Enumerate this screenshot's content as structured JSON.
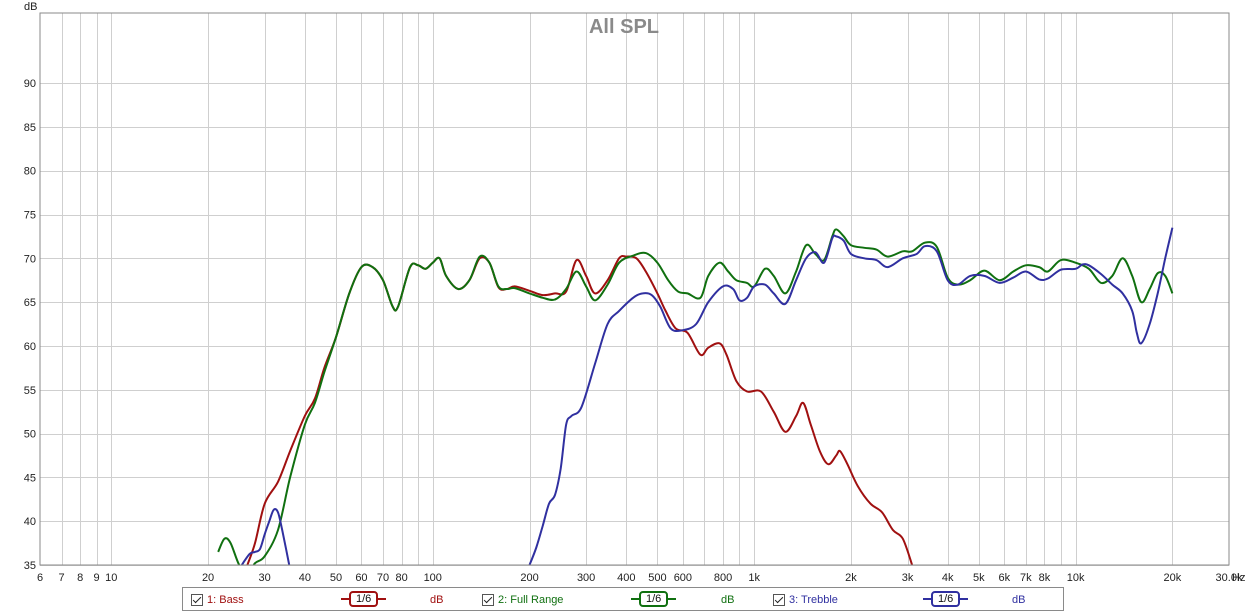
{
  "chart_data": {
    "type": "line",
    "title": "All SPL",
    "y_unit_label": "dB",
    "x_unit_label": "Hz",
    "x_scale": "log",
    "xlim": [
      6,
      30000
    ],
    "ylim": [
      35,
      98
    ],
    "grid": true,
    "legend_position": "bottom",
    "y_ticks": [
      {
        "v": 35,
        "label": "35"
      },
      {
        "v": 40,
        "label": "40"
      },
      {
        "v": 45,
        "label": "45"
      },
      {
        "v": 50,
        "label": "50"
      },
      {
        "v": 55,
        "label": "55"
      },
      {
        "v": 60,
        "label": "60"
      },
      {
        "v": 65,
        "label": "65"
      },
      {
        "v": 70,
        "label": "70"
      },
      {
        "v": 75,
        "label": "75"
      },
      {
        "v": 80,
        "label": "80"
      },
      {
        "v": 85,
        "label": "85"
      },
      {
        "v": 90,
        "label": "90"
      }
    ],
    "x_ticks": [
      {
        "v": 6,
        "label": "6"
      },
      {
        "v": 7,
        "label": "7"
      },
      {
        "v": 8,
        "label": "8"
      },
      {
        "v": 9,
        "label": "9"
      },
      {
        "v": 10,
        "label": "10"
      },
      {
        "v": 20,
        "label": "20"
      },
      {
        "v": 30,
        "label": "30"
      },
      {
        "v": 40,
        "label": "40"
      },
      {
        "v": 50,
        "label": "50"
      },
      {
        "v": 60,
        "label": "60"
      },
      {
        "v": 70,
        "label": "70"
      },
      {
        "v": 80,
        "label": "80"
      },
      {
        "v": 100,
        "label": "100"
      },
      {
        "v": 200,
        "label": "200"
      },
      {
        "v": 300,
        "label": "300"
      },
      {
        "v": 400,
        "label": "400"
      },
      {
        "v": 500,
        "label": "500"
      },
      {
        "v": 600,
        "label": "600"
      },
      {
        "v": 800,
        "label": "800"
      },
      {
        "v": 1000,
        "label": "1k"
      },
      {
        "v": 2000,
        "label": "2k"
      },
      {
        "v": 3000,
        "label": "3k"
      },
      {
        "v": 4000,
        "label": "4k"
      },
      {
        "v": 5000,
        "label": "5k"
      },
      {
        "v": 6000,
        "label": "6k"
      },
      {
        "v": 7000,
        "label": "7k"
      },
      {
        "v": 8000,
        "label": "8k"
      },
      {
        "v": 10000,
        "label": "10k"
      },
      {
        "v": 20000,
        "label": "20k"
      },
      {
        "v": 30000,
        "label": "30.0k"
      }
    ],
    "series": [
      {
        "name": "1: Bass",
        "color": "#a01010",
        "smoothing": "1/6",
        "unit": "dB",
        "points": [
          [
            26.5,
            35
          ],
          [
            28,
            37.5
          ],
          [
            30,
            42
          ],
          [
            33,
            44.5
          ],
          [
            36,
            48
          ],
          [
            40,
            52
          ],
          [
            43,
            54
          ],
          [
            46,
            57.5
          ],
          [
            50,
            61
          ],
          [
            55,
            66
          ],
          [
            60,
            69
          ],
          [
            65,
            69
          ],
          [
            70,
            67.5
          ],
          [
            75,
            64.5
          ],
          [
            78,
            64.5
          ],
          [
            85,
            69
          ],
          [
            90,
            69.2
          ],
          [
            95,
            68.8
          ],
          [
            100,
            69.5
          ],
          [
            105,
            70
          ],
          [
            110,
            68
          ],
          [
            120,
            66.5
          ],
          [
            130,
            67.5
          ],
          [
            140,
            70
          ],
          [
            150,
            69.5
          ],
          [
            160,
            66.7
          ],
          [
            170,
            66.5
          ],
          [
            180,
            66.8
          ],
          [
            200,
            66.3
          ],
          [
            220,
            65.8
          ],
          [
            240,
            66
          ],
          [
            260,
            66.2
          ],
          [
            280,
            69.8
          ],
          [
            300,
            68
          ],
          [
            320,
            66
          ],
          [
            350,
            67.5
          ],
          [
            380,
            70
          ],
          [
            400,
            70.2
          ],
          [
            430,
            70
          ],
          [
            460,
            68.5
          ],
          [
            500,
            66
          ],
          [
            530,
            64
          ],
          [
            570,
            62
          ],
          [
            620,
            61.5
          ],
          [
            680,
            59
          ],
          [
            720,
            59.8
          ],
          [
            780,
            60.3
          ],
          [
            820,
            59
          ],
          [
            880,
            56
          ],
          [
            950,
            54.8
          ],
          [
            1050,
            54.8
          ],
          [
            1150,
            52.5
          ],
          [
            1250,
            50.2
          ],
          [
            1350,
            52
          ],
          [
            1420,
            53.5
          ],
          [
            1500,
            51
          ],
          [
            1600,
            48
          ],
          [
            1700,
            46.5
          ],
          [
            1800,
            47.5
          ],
          [
            1850,
            48
          ],
          [
            1950,
            46.5
          ],
          [
            2100,
            44
          ],
          [
            2300,
            42
          ],
          [
            2500,
            41
          ],
          [
            2700,
            39
          ],
          [
            2900,
            38
          ],
          [
            3100,
            35
          ]
        ]
      },
      {
        "name": "2: Full Range",
        "color": "#107010",
        "smoothing": "1/6",
        "unit": "dB",
        "points": [
          [
            21.5,
            36.5
          ],
          [
            22.5,
            38
          ],
          [
            23.5,
            37.5
          ],
          [
            25,
            35
          ],
          [
            26.5,
            34
          ],
          [
            28,
            35.2
          ],
          [
            30,
            36
          ],
          [
            33,
            39
          ],
          [
            36,
            45
          ],
          [
            40,
            51
          ],
          [
            43,
            53.5
          ],
          [
            46,
            57
          ],
          [
            50,
            61
          ],
          [
            55,
            66
          ],
          [
            60,
            69
          ],
          [
            65,
            69
          ],
          [
            70,
            67.5
          ],
          [
            75,
            64.5
          ],
          [
            78,
            64.5
          ],
          [
            85,
            69
          ],
          [
            90,
            69.2
          ],
          [
            95,
            68.8
          ],
          [
            100,
            69.5
          ],
          [
            105,
            70
          ],
          [
            110,
            68
          ],
          [
            120,
            66.5
          ],
          [
            130,
            67.5
          ],
          [
            140,
            70.2
          ],
          [
            150,
            69.5
          ],
          [
            160,
            66.8
          ],
          [
            170,
            66.5
          ],
          [
            180,
            66.6
          ],
          [
            200,
            66
          ],
          [
            220,
            65.5
          ],
          [
            240,
            65.3
          ],
          [
            260,
            66.5
          ],
          [
            280,
            68.5
          ],
          [
            300,
            66.8
          ],
          [
            320,
            65.2
          ],
          [
            350,
            67
          ],
          [
            380,
            69.5
          ],
          [
            420,
            70.3
          ],
          [
            460,
            70.6
          ],
          [
            500,
            69.5
          ],
          [
            540,
            67.5
          ],
          [
            580,
            66.2
          ],
          [
            620,
            66
          ],
          [
            680,
            65.5
          ],
          [
            720,
            68
          ],
          [
            780,
            69.5
          ],
          [
            830,
            68.5
          ],
          [
            880,
            67.5
          ],
          [
            950,
            67.2
          ],
          [
            1000,
            66.8
          ],
          [
            1080,
            68.8
          ],
          [
            1150,
            68
          ],
          [
            1250,
            66
          ],
          [
            1350,
            68.5
          ],
          [
            1450,
            71.5
          ],
          [
            1550,
            70.5
          ],
          [
            1650,
            69.8
          ],
          [
            1750,
            72.5
          ],
          [
            1800,
            73.3
          ],
          [
            1900,
            72.5
          ],
          [
            2000,
            71.5
          ],
          [
            2200,
            71.2
          ],
          [
            2400,
            71
          ],
          [
            2600,
            70.2
          ],
          [
            2900,
            70.8
          ],
          [
            3100,
            70.8
          ],
          [
            3400,
            71.8
          ],
          [
            3700,
            71.3
          ],
          [
            4000,
            67.8
          ],
          [
            4300,
            67
          ],
          [
            4700,
            67.5
          ],
          [
            5200,
            68.6
          ],
          [
            5800,
            67.5
          ],
          [
            6400,
            68.5
          ],
          [
            7000,
            69.2
          ],
          [
            7700,
            69
          ],
          [
            8200,
            68.5
          ],
          [
            9000,
            69.8
          ],
          [
            10000,
            69.5
          ],
          [
            11000,
            68.8
          ],
          [
            12000,
            67.2
          ],
          [
            13000,
            68
          ],
          [
            14000,
            70
          ],
          [
            15000,
            68
          ],
          [
            16000,
            65
          ],
          [
            17000,
            66.5
          ],
          [
            18000,
            68.3
          ],
          [
            19000,
            68
          ],
          [
            20000,
            66
          ]
        ]
      },
      {
        "name": "3: Trebble",
        "color": "#3030a0",
        "smoothing": "1/6",
        "unit": "dB",
        "points": [
          [
            25,
            34.5
          ],
          [
            26,
            35.5
          ],
          [
            27,
            36.3
          ],
          [
            28,
            36.5
          ],
          [
            29,
            36.8
          ],
          [
            30,
            38.5
          ],
          [
            31,
            40
          ],
          [
            32,
            41.3
          ],
          [
            33,
            41
          ],
          [
            34,
            39
          ],
          [
            36,
            34.5
          ],
          [
            200,
            35
          ],
          [
            210,
            37
          ],
          [
            220,
            39.5
          ],
          [
            230,
            42
          ],
          [
            240,
            43
          ],
          [
            250,
            46
          ],
          [
            260,
            51
          ],
          [
            270,
            52
          ],
          [
            290,
            53
          ],
          [
            320,
            58
          ],
          [
            350,
            62.5
          ],
          [
            380,
            64
          ],
          [
            420,
            65.5
          ],
          [
            450,
            66
          ],
          [
            480,
            65.8
          ],
          [
            510,
            64.5
          ],
          [
            550,
            62
          ],
          [
            600,
            61.8
          ],
          [
            660,
            62.5
          ],
          [
            720,
            65
          ],
          [
            800,
            66.8
          ],
          [
            860,
            66.5
          ],
          [
            900,
            65.2
          ],
          [
            950,
            65.5
          ],
          [
            1000,
            66.8
          ],
          [
            1080,
            67
          ],
          [
            1150,
            66
          ],
          [
            1250,
            64.8
          ],
          [
            1350,
            67.5
          ],
          [
            1450,
            70
          ],
          [
            1550,
            70.7
          ],
          [
            1650,
            69.5
          ],
          [
            1750,
            72.3
          ],
          [
            1800,
            72.5
          ],
          [
            1900,
            72
          ],
          [
            2000,
            70.5
          ],
          [
            2200,
            70
          ],
          [
            2400,
            69.8
          ],
          [
            2600,
            69
          ],
          [
            2900,
            70
          ],
          [
            3200,
            70.5
          ],
          [
            3400,
            71.4
          ],
          [
            3700,
            70.8
          ],
          [
            4000,
            67.5
          ],
          [
            4300,
            67
          ],
          [
            4700,
            68
          ],
          [
            5200,
            68
          ],
          [
            5800,
            67.2
          ],
          [
            6400,
            67.8
          ],
          [
            7000,
            68.5
          ],
          [
            7700,
            67.6
          ],
          [
            8200,
            67.7
          ],
          [
            9000,
            68.7
          ],
          [
            10000,
            68.8
          ],
          [
            10500,
            69.3
          ],
          [
            11000,
            69.2
          ],
          [
            12000,
            68.2
          ],
          [
            13000,
            67
          ],
          [
            14000,
            66
          ],
          [
            15000,
            64
          ],
          [
            15500,
            61.5
          ],
          [
            16000,
            60.3
          ],
          [
            17000,
            62.5
          ],
          [
            18000,
            66
          ],
          [
            19000,
            70
          ],
          [
            20000,
            73.5
          ]
        ]
      }
    ]
  }
}
